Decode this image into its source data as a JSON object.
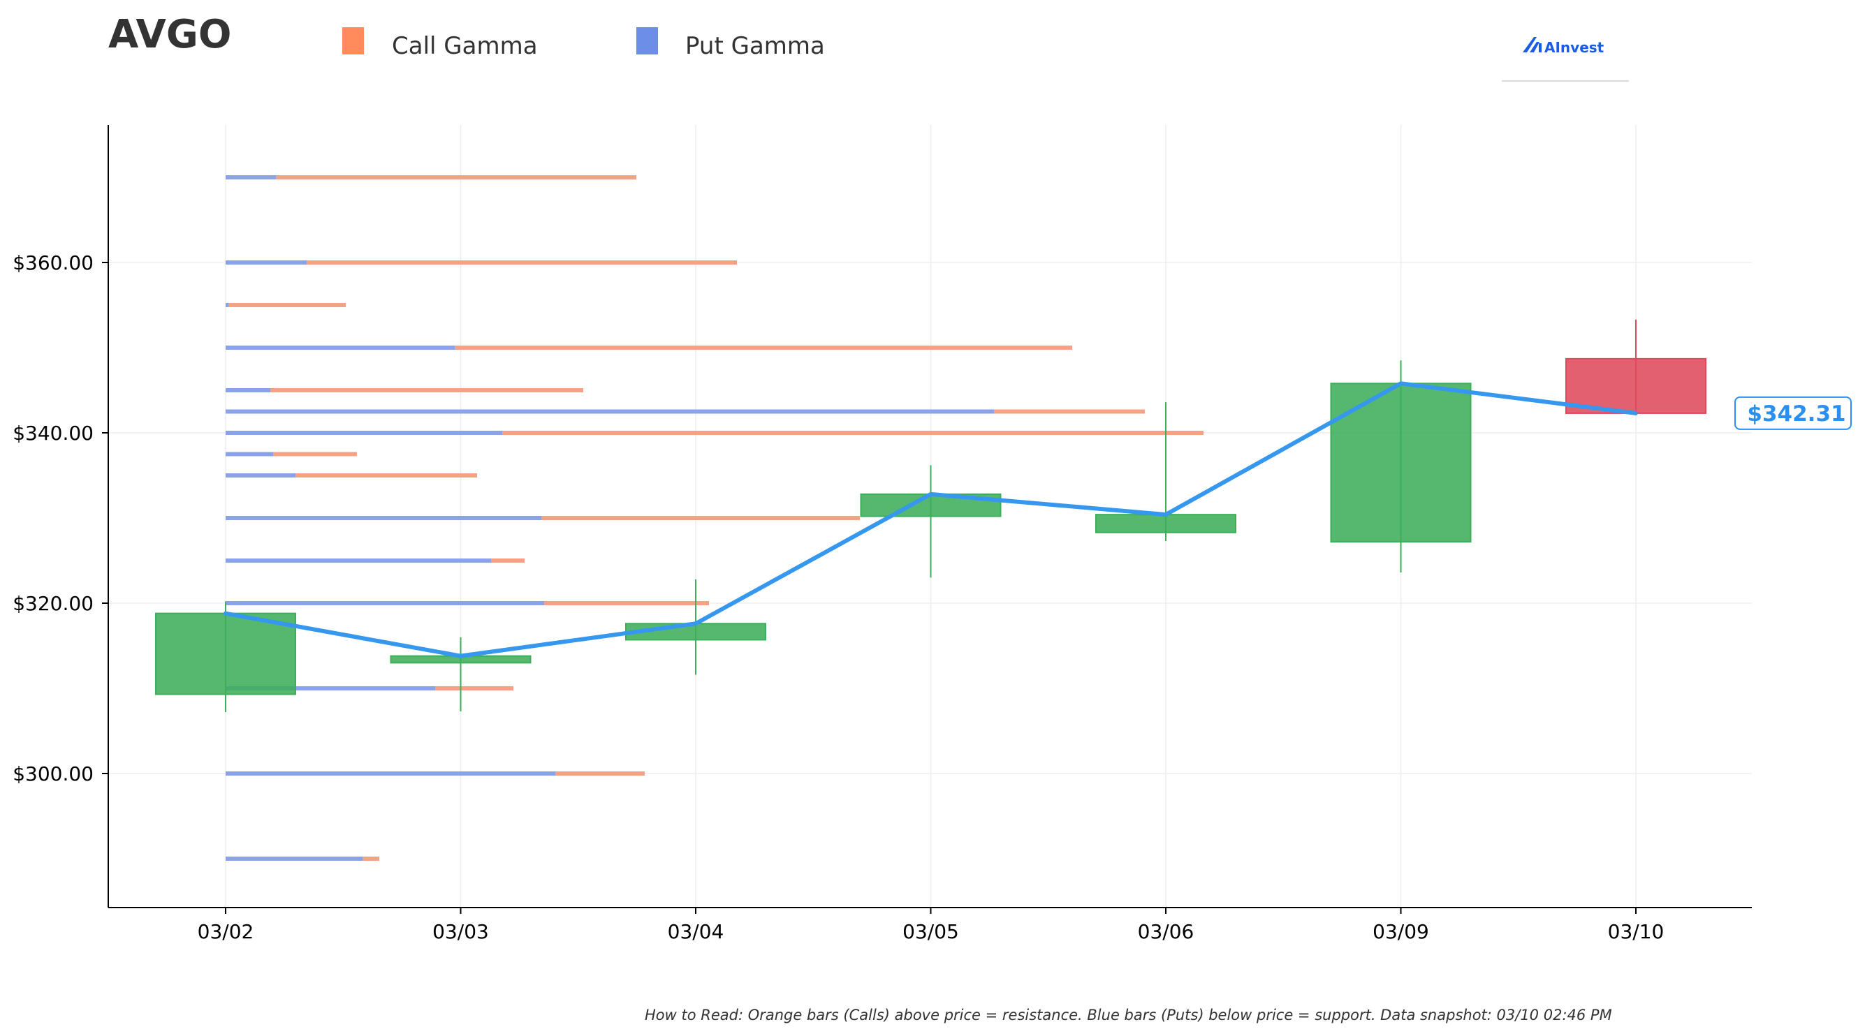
{
  "title": "AVGO",
  "legend": {
    "call_label": "Call Gamma",
    "put_label": "Put Gamma",
    "call_color": "#FF8A5C",
    "put_color": "#6C8EE8"
  },
  "logo": {
    "text": "AInvest",
    "color": "#1A5CE6"
  },
  "price_tag": {
    "label": "$342.31",
    "color": "#2A8FEE"
  },
  "footer": "How to Read: Orange bars (Calls) above price = resistance. Blue bars (Puts) below price = support. Data snapshot: 03/10 02:46 PM",
  "colors": {
    "up": "#3DAE5A",
    "down": "#DE4A5C",
    "line": "#3597EE",
    "call_bar": "#F5A184",
    "put_bar": "#8AA3E8",
    "grid": "#EEEEEE",
    "axis": "#000000"
  },
  "chart_data": {
    "type": "candlestick",
    "categories": [
      "03/02",
      "03/03",
      "03/04",
      "03/05",
      "03/06",
      "03/09",
      "03/10"
    ],
    "ohlc": [
      {
        "date": "03/02",
        "open": 309.3,
        "high": 320.2,
        "low": 307.2,
        "close": 318.8
      },
      {
        "date": "03/03",
        "open": 313.0,
        "high": 316.0,
        "low": 307.3,
        "close": 313.8
      },
      {
        "date": "03/04",
        "open": 315.7,
        "high": 322.8,
        "low": 311.6,
        "close": 317.6
      },
      {
        "date": "03/05",
        "open": 330.2,
        "high": 336.2,
        "low": 323.0,
        "close": 332.8
      },
      {
        "date": "03/06",
        "open": 328.3,
        "high": 343.6,
        "low": 327.3,
        "close": 330.4
      },
      {
        "date": "03/09",
        "open": 327.2,
        "high": 348.5,
        "low": 323.6,
        "close": 345.8
      },
      {
        "date": "03/10",
        "open": 348.7,
        "high": 353.3,
        "low": 342.2,
        "close": 342.3
      }
    ],
    "price_line": [
      318.8,
      313.8,
      317.6,
      332.8,
      330.4,
      345.8,
      342.3
    ],
    "y_ticks": [
      300,
      320,
      340,
      360
    ],
    "y_tick_labels": [
      "$300.00",
      "$320.00",
      "$340.00",
      "$360.00"
    ],
    "ylim": [
      283.7,
      375.5
    ],
    "gamma_levels": [
      {
        "strike": 370,
        "put": 0.18,
        "call": 1.29
      },
      {
        "strike": 360,
        "put": 0.29,
        "call": 1.54
      },
      {
        "strike": 355,
        "put": 0.01,
        "call": 0.42
      },
      {
        "strike": 350,
        "put": 0.82,
        "call": 2.21
      },
      {
        "strike": 345,
        "put": 0.16,
        "call": 1.12
      },
      {
        "strike": 342.5,
        "put": 2.75,
        "call": 0.54
      },
      {
        "strike": 340,
        "put": 0.99,
        "call": 2.51
      },
      {
        "strike": 337.5,
        "put": 0.17,
        "call": 0.3
      },
      {
        "strike": 335,
        "put": 0.25,
        "call": 0.65
      },
      {
        "strike": 330,
        "put": 1.13,
        "call": 1.14
      },
      {
        "strike": 325,
        "put": 0.95,
        "call": 0.12
      },
      {
        "strike": 320,
        "put": 1.14,
        "call": 0.59
      },
      {
        "strike": 310,
        "put": 0.75,
        "call": 0.28
      },
      {
        "strike": 300,
        "put": 1.18,
        "call": 0.32
      },
      {
        "strike": 290,
        "put": 0.49,
        "call": 0.06
      }
    ],
    "last_price": 342.31,
    "xlabel": "",
    "ylabel": "",
    "grid": true
  }
}
